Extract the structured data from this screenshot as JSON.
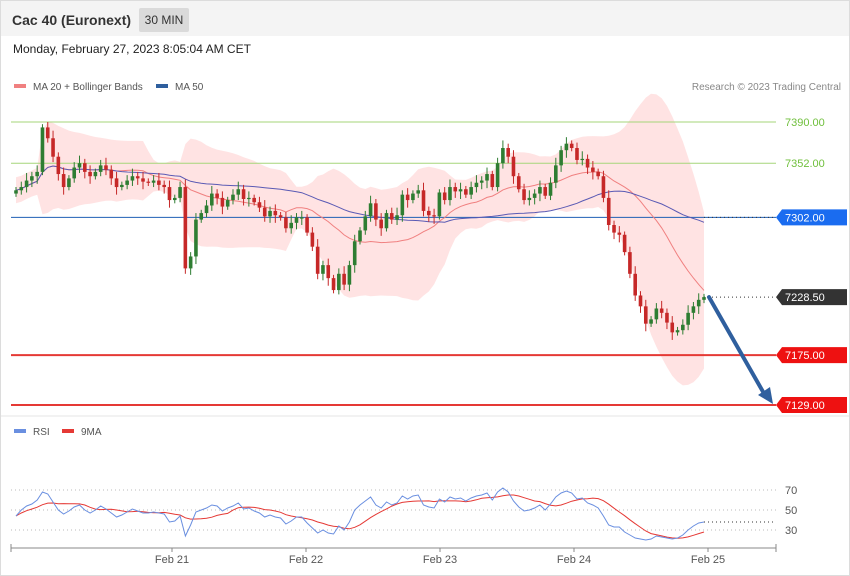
{
  "header": {
    "title": "Cac 40 (Euronext)",
    "timeframe": "30 MIN",
    "datetime": "Monday, February 27, 2023 8:05:04 AM CET"
  },
  "legend": {
    "ma20_label": "MA 20 + Bollinger Bands",
    "ma50_label": "MA 50",
    "copyright": "Research © 2023 Trading Central",
    "rsi_label": "RSI",
    "rsi_ma_label": "9MA"
  },
  "colors": {
    "ma20": "#f08080",
    "ma50": "#5a5ab4",
    "bollinger_fill": "#ffe0e0",
    "candle_up": "#2e7d32",
    "candle_down": "#c62828",
    "resistance": "#a5d67a",
    "pivot": "#1f5fb4",
    "support": "#e53935",
    "current_tag": "#333333",
    "arrow": "#2f5f9e",
    "rsi": "#6a8fe0",
    "rsi_ma": "#e53935"
  },
  "chart_data": [
    {
      "type": "candlestick",
      "ylim": [
        7085,
        7405
      ],
      "x_ticks": [
        "Feb 21",
        "Feb 22",
        "Feb 23",
        "Feb 24",
        "Feb 25"
      ],
      "levels": [
        {
          "value": 7390.0,
          "label": "7390.00",
          "kind": "resistance"
        },
        {
          "value": 7352.0,
          "label": "7352.00",
          "kind": "resistance"
        },
        {
          "value": 7302.0,
          "label": "7302.00",
          "kind": "pivot"
        },
        {
          "value": 7228.5,
          "label": "7228.50",
          "kind": "current"
        },
        {
          "value": 7175.0,
          "label": "7175.00",
          "kind": "support"
        },
        {
          "value": 7129.0,
          "label": "7129.00",
          "kind": "support"
        }
      ],
      "forecast_arrow": {
        "from": 7228.5,
        "to": 7129.0
      },
      "close": [
        7327,
        7330,
        7336,
        7340,
        7344,
        7385,
        7375,
        7358,
        7342,
        7330,
        7338,
        7348,
        7352,
        7344,
        7340,
        7344,
        7350,
        7346,
        7338,
        7330,
        7332,
        7336,
        7340,
        7338,
        7335,
        7334,
        7336,
        7332,
        7330,
        7318,
        7320,
        7330,
        7255,
        7266,
        7300,
        7306,
        7313,
        7324,
        7320,
        7312,
        7318,
        7323,
        7328,
        7319,
        7320,
        7316,
        7311,
        7303,
        7308,
        7304,
        7302,
        7292,
        7297,
        7302,
        7302,
        7288,
        7275,
        7250,
        7258,
        7246,
        7235,
        7250,
        7240,
        7258,
        7280,
        7290,
        7303,
        7315,
        7300,
        7292,
        7306,
        7300,
        7304,
        7323,
        7318,
        7324,
        7327,
        7308,
        7304,
        7303,
        7325,
        7318,
        7330,
        7326,
        7328,
        7323,
        7330,
        7334,
        7336,
        7342,
        7330,
        7352,
        7366,
        7358,
        7340,
        7328,
        7318,
        7320,
        7324,
        7330,
        7322,
        7334,
        7350,
        7364,
        7370,
        7366,
        7355,
        7356,
        7348,
        7344,
        7340,
        7320,
        7295,
        7288,
        7286,
        7270,
        7250,
        7230,
        7220,
        7204,
        7208,
        7218,
        7214,
        7205,
        7196,
        7198,
        7203,
        7214,
        7220,
        7226,
        7228.5
      ],
      "rsi": {
        "ylim": [
          15,
          85
        ],
        "ticks": [
          70,
          50,
          30
        ],
        "values": [
          44,
          50,
          54,
          56,
          60,
          68,
          66,
          58,
          50,
          46,
          49,
          53,
          55,
          50,
          47,
          50,
          54,
          51,
          47,
          43,
          45,
          48,
          51,
          49,
          47,
          47,
          48,
          47,
          46,
          38,
          39,
          44,
          24,
          35,
          48,
          50,
          52,
          55,
          54,
          49,
          52,
          54,
          57,
          51,
          52,
          49,
          47,
          43,
          45,
          43,
          42,
          36,
          39,
          43,
          43,
          37,
          32,
          27,
          30,
          27,
          26,
          34,
          30,
          38,
          50,
          55,
          59,
          63,
          55,
          52,
          58,
          55,
          57,
          64,
          61,
          64,
          65,
          55,
          53,
          52,
          61,
          58,
          63,
          61,
          62,
          59,
          62,
          64,
          65,
          67,
          60,
          68,
          72,
          68,
          59,
          53,
          49,
          50,
          52,
          55,
          50,
          56,
          63,
          67,
          69,
          67,
          61,
          62,
          57,
          55,
          52,
          44,
          35,
          33,
          33,
          28,
          25,
          22,
          21,
          20,
          21,
          24,
          23,
          22,
          21,
          22,
          25,
          30,
          34,
          37,
          38
        ]
      }
    }
  ]
}
